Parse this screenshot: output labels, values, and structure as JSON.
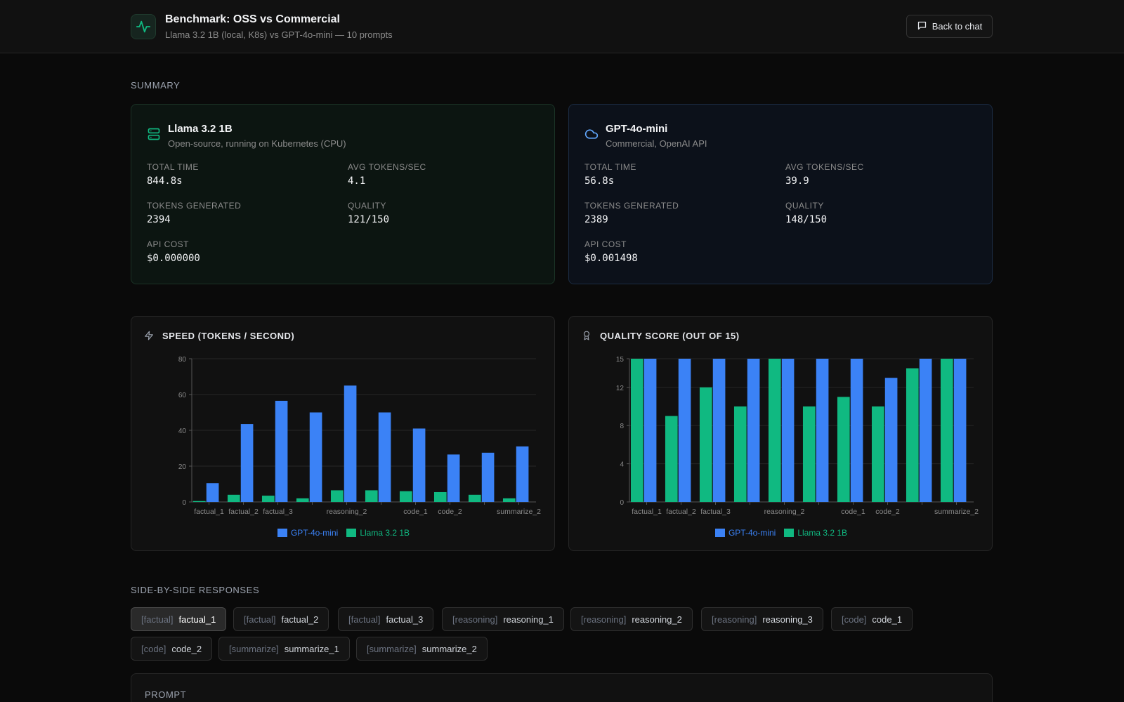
{
  "header": {
    "title": "Benchmark: OSS vs Commercial",
    "subtitle": "Llama 3.2 1B (local, K8s) vs GPT-4o-mini — 10 prompts",
    "back_label": "Back to chat"
  },
  "summary_label": "Summary",
  "summary": {
    "oss": {
      "name": "Llama 3.2 1B",
      "desc": "Open-source, running on Kubernetes (CPU)",
      "icon": "server-icon",
      "stats": [
        {
          "label": "Total Time",
          "value": "844.8s"
        },
        {
          "label": "Avg Tokens/Sec",
          "value": "4.1"
        },
        {
          "label": "Tokens Generated",
          "value": "2394"
        },
        {
          "label": "Quality",
          "value": "121/150"
        },
        {
          "label": "API Cost",
          "value": "$0.000000"
        }
      ]
    },
    "commercial": {
      "name": "GPT-4o-mini",
      "desc": "Commercial, OpenAI API",
      "icon": "cloud-icon",
      "stats": [
        {
          "label": "Total Time",
          "value": "56.8s"
        },
        {
          "label": "Avg Tokens/Sec",
          "value": "39.9"
        },
        {
          "label": "Tokens Generated",
          "value": "2389"
        },
        {
          "label": "Quality",
          "value": "148/150"
        },
        {
          "label": "API Cost",
          "value": "$0.001498"
        }
      ]
    }
  },
  "colors": {
    "gpt": "#3b82f6",
    "llama": "#10b981"
  },
  "chart_data": [
    {
      "type": "bar",
      "title": "Speed (tokens / second)",
      "categories": [
        "factual_1",
        "factual_2",
        "factual_3",
        "reasoning_1",
        "reasoning_2",
        "reasoning_3",
        "code_1",
        "code_2",
        "summarize_1",
        "summarize_2"
      ],
      "tick_labels": [
        "factual_1",
        "factual_2",
        "factual_3",
        "",
        "reasoning_2",
        "",
        "code_1",
        "code_2",
        "",
        "summarize_2"
      ],
      "series": [
        {
          "name": "Llama 3.2 1B",
          "values": [
            0.5,
            4,
            3.5,
            2,
            6.5,
            6.5,
            6,
            5.5,
            4,
            2
          ]
        },
        {
          "name": "GPT-4o-mini",
          "values": [
            10.5,
            43.5,
            56.5,
            50,
            65,
            50,
            41,
            26.5,
            27.5,
            31
          ]
        }
      ],
      "ylim": [
        0,
        80
      ],
      "yticks": [
        0,
        20,
        40,
        60,
        80
      ],
      "grid": true,
      "legend": "bottom-center"
    },
    {
      "type": "bar",
      "title": "Quality score (out of 15)",
      "categories": [
        "factual_1",
        "factual_2",
        "factual_3",
        "reasoning_1",
        "reasoning_2",
        "reasoning_3",
        "code_1",
        "code_2",
        "summarize_1",
        "summarize_2"
      ],
      "tick_labels": [
        "factual_1",
        "factual_2",
        "factual_3",
        "",
        "reasoning_2",
        "",
        "code_1",
        "code_2",
        "",
        "summarize_2"
      ],
      "series": [
        {
          "name": "Llama 3.2 1B",
          "values": [
            15,
            9,
            12,
            10,
            15,
            10,
            11,
            10,
            14,
            15
          ]
        },
        {
          "name": "GPT-4o-mini",
          "values": [
            15,
            15,
            15,
            15,
            15,
            15,
            15,
            13,
            15,
            15
          ]
        }
      ],
      "ylim": [
        0,
        15
      ],
      "yticks": [
        0,
        4,
        8,
        12,
        15
      ],
      "grid": true,
      "legend": "bottom-center"
    }
  ],
  "legend_labels": [
    "GPT-4o-mini",
    "Llama 3.2 1B"
  ],
  "responses_label": "Side-by-side responses",
  "tabs": [
    {
      "cat": "[factual]",
      "name": "factual_1",
      "active": true
    },
    {
      "cat": "[factual]",
      "name": "factual_2"
    },
    {
      "cat": "[factual]",
      "name": "factual_3"
    },
    {
      "cat": "[reasoning]",
      "name": "reasoning_1"
    },
    {
      "cat": "[reasoning]",
      "name": "reasoning_2"
    },
    {
      "cat": "[reasoning]",
      "name": "reasoning_3"
    },
    {
      "cat": "[code]",
      "name": "code_1"
    },
    {
      "cat": "[code]",
      "name": "code_2"
    },
    {
      "cat": "[summarize]",
      "name": "summarize_1"
    },
    {
      "cat": "[summarize]",
      "name": "summarize_2"
    }
  ],
  "prompt_label": "Prompt"
}
